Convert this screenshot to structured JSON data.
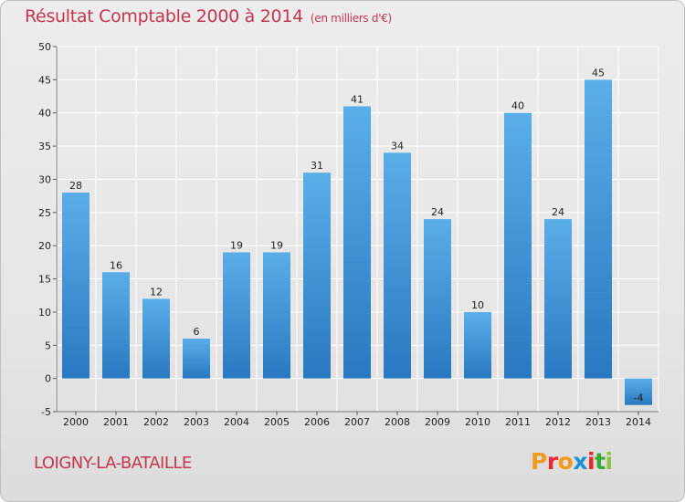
{
  "title": "Résultat Comptable 2000 à 2014",
  "subtitle": "(en milliers d'€)",
  "commune": "LOIGNY-LA-BATAILLE",
  "logo": {
    "text": "Proxiti",
    "letters": [
      "P",
      "r",
      "o",
      "x",
      "i",
      "t",
      "i"
    ],
    "colors": [
      "#f39a1e",
      "#e8282a",
      "#f39a1e",
      "#1f8fd4",
      "#e8282a",
      "#3aa935",
      "#8cc63e"
    ]
  },
  "colors": {
    "title": "#c4364f",
    "bar_top": "#5aaee8",
    "bar_bottom": "#2a78c0",
    "grid": "#ffffff"
  },
  "chart_data": {
    "type": "bar",
    "title": "Résultat Comptable 2000 à 2014",
    "subtitle": "(en milliers d'€)",
    "xlabel": "",
    "ylabel": "",
    "categories": [
      "2000",
      "2001",
      "2002",
      "2003",
      "2004",
      "2005",
      "2006",
      "2007",
      "2008",
      "2009",
      "2010",
      "2011",
      "2012",
      "2013",
      "2014"
    ],
    "values": [
      28,
      16,
      12,
      6,
      19,
      19,
      31,
      41,
      34,
      24,
      10,
      40,
      24,
      45,
      -4
    ],
    "ylim": [
      -5,
      50
    ],
    "yticks": [
      -5,
      0,
      5,
      10,
      15,
      20,
      25,
      30,
      35,
      40,
      45,
      50
    ],
    "grid": true
  }
}
